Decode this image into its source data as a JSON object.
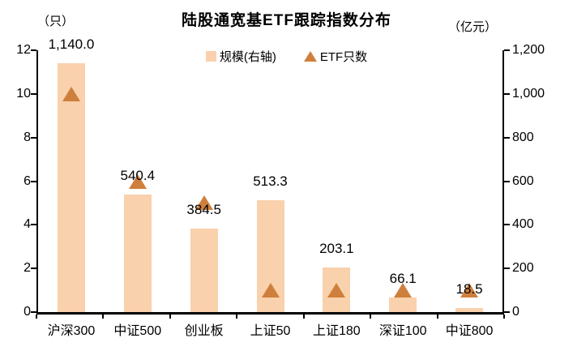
{
  "chart_data": {
    "type": "bar",
    "title": "陆股通宽基ETF跟踪指数分布",
    "categories": [
      "沪深300",
      "中证500",
      "创业板",
      "上证50",
      "上证180",
      "深证100",
      "中证800"
    ],
    "series": [
      {
        "name": "规模(右轴)",
        "type": "bar",
        "axis": "right",
        "values": [
          1140.0,
          540.4,
          384.5,
          513.3,
          203.1,
          66.1,
          18.5
        ],
        "labels": [
          "1,140.0",
          "540.4",
          "384.5",
          "513.3",
          "203.1",
          "66.1",
          "18.5"
        ],
        "color": "#f9d1ac"
      },
      {
        "name": "ETF只数",
        "type": "triangle",
        "axis": "left",
        "values": [
          10,
          6,
          5,
          1,
          1,
          1,
          1
        ],
        "color": "#cf7f3c"
      }
    ],
    "left_axis": {
      "unit": "（只）",
      "min": 0,
      "max": 12,
      "ticks": [
        0,
        2,
        4,
        6,
        8,
        10,
        12
      ]
    },
    "right_axis": {
      "unit": "（亿元）",
      "min": 0,
      "max": 1200,
      "ticks": [
        0,
        200,
        400,
        600,
        800,
        1000,
        1200
      ],
      "tick_labels": [
        "0",
        "200",
        "400",
        "600",
        "800",
        "1,000",
        "1,200"
      ]
    },
    "legend_position": "top-center",
    "grid": false,
    "text_color": "#000000",
    "axis_color": "#000000"
  }
}
